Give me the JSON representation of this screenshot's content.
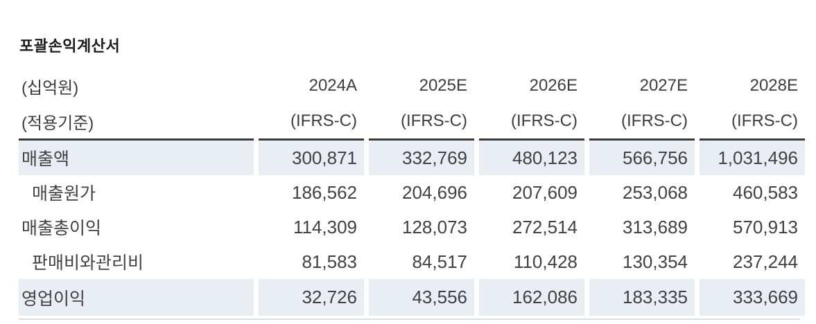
{
  "table": {
    "title": "포괄손익계산서",
    "unit_label": "(십억원)",
    "basis_label": "(적용기준)",
    "columns": [
      "2024A",
      "2025E",
      "2026E",
      "2027E",
      "2028E"
    ],
    "basis_values": [
      "(IFRS-C)",
      "(IFRS-C)",
      "(IFRS-C)",
      "(IFRS-C)",
      "(IFRS-C)"
    ],
    "rows": [
      {
        "label": "매출액",
        "indent": false,
        "highlight": true,
        "values": [
          "300,871",
          "332,769",
          "480,123",
          "566,756",
          "1,031,496"
        ]
      },
      {
        "label": "매출원가",
        "indent": true,
        "highlight": false,
        "values": [
          "186,562",
          "204,696",
          "207,609",
          "253,068",
          "460,583"
        ]
      },
      {
        "label": "매출총이익",
        "indent": false,
        "highlight": false,
        "values": [
          "114,309",
          "128,073",
          "272,514",
          "313,689",
          "570,913"
        ]
      },
      {
        "label": "판매비와관리비",
        "indent": true,
        "highlight": false,
        "values": [
          "81,583",
          "84,517",
          "110,428",
          "130,354",
          "237,244"
        ]
      },
      {
        "label": "영업이익",
        "indent": false,
        "highlight": true,
        "values": [
          "32,726",
          "43,556",
          "162,086",
          "183,335",
          "333,669"
        ]
      }
    ],
    "colors": {
      "highlight_bg": "#e9edf4",
      "heavy_rule": "#383838",
      "light_rule": "#d9dee8",
      "text": "#3f3f3f",
      "title_text": "#1c1c1c"
    }
  }
}
